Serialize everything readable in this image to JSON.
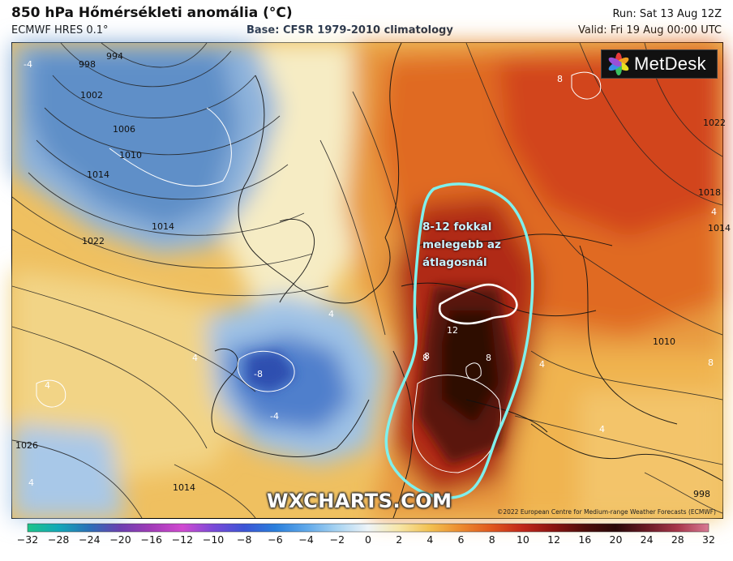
{
  "header": {
    "title": "850 hPa Hőmérsékleti anomália (°C)",
    "model": "ECMWF HRES 0.1°",
    "base": "Base: CFSR 1979-2010 climatology",
    "run": "Run: Sat 13 Aug 12Z",
    "valid": "Valid: Fri 19 Aug 00:00 UTC"
  },
  "logo": {
    "text": "MetDesk",
    "icon": "metdesk-flower-icon"
  },
  "annotation": {
    "line1": "8-12 fokkal",
    "line2": "melegebb az",
    "line3": "átlagosnál",
    "outline_color": "#7ff0ec"
  },
  "map": {
    "isobars": [
      "994",
      "998",
      "1002",
      "1006",
      "1010",
      "1014",
      "1014",
      "1022",
      "1026",
      "1018",
      "1022",
      "1014",
      "1010",
      "1014",
      "998"
    ],
    "anomaly_labels": [
      "-4",
      "-8",
      "-4",
      "4",
      "4",
      "4",
      "4",
      "8",
      "8",
      "8",
      "8",
      "12",
      "4",
      "4",
      "4",
      "8"
    ]
  },
  "watermark": "WXCHARTS.COM",
  "copyright": "©2022 European Centre for Medium-range Weather Forecasts (ECMWF)",
  "colorbar": {
    "ticks": [
      "−32",
      "−28",
      "−24",
      "−20",
      "−16",
      "−12",
      "−10",
      "−8",
      "−6",
      "−4",
      "−2",
      "0",
      "2",
      "4",
      "6",
      "8",
      "10",
      "12",
      "16",
      "20",
      "24",
      "28",
      "32"
    ],
    "colors": [
      "#1ec48a",
      "#12a8b8",
      "#2a6fb8",
      "#6b3fb0",
      "#a23bb8",
      "#d14ad1",
      "#7a4ad8",
      "#3c55d6",
      "#2a7fdc",
      "#5fa8ea",
      "#a8d4f2",
      "#eef4f8",
      "#f7e6a6",
      "#f2c050",
      "#ec8a2e",
      "#e0561c",
      "#c0261a",
      "#8a1410",
      "#4e0d0a",
      "#2a0808",
      "#6a1a24",
      "#a8364a",
      "#d87a94"
    ]
  }
}
